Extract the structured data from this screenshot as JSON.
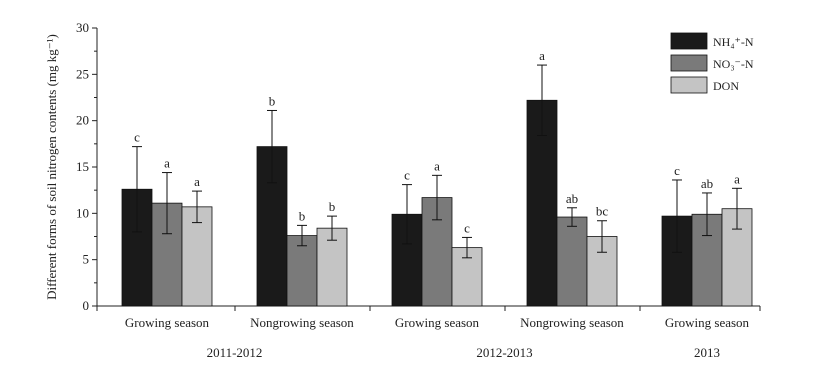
{
  "chart_data": {
    "type": "bar",
    "ylabel": "Different forms of soil nitrogen contents (mg kg⁻¹)",
    "ylim": [
      0,
      30
    ],
    "yticks": [
      0,
      5,
      10,
      15,
      20,
      25,
      30
    ],
    "categories": [
      "Growing season",
      "Nongrowing season",
      "Growing season",
      "Nongrowing season",
      "Growing season"
    ],
    "year_groups": [
      {
        "label": "2011-2012",
        "categories": [
          0,
          1
        ]
      },
      {
        "label": "2012-2013",
        "categories": [
          2,
          3
        ]
      },
      {
        "label": "2013",
        "categories": [
          4
        ]
      }
    ],
    "legend_position": "top-right",
    "series": [
      {
        "name": "NH₄⁺-N",
        "color": "#1a1a1a",
        "values": [
          12.6,
          17.2,
          9.9,
          22.2,
          9.7
        ],
        "errors": [
          4.6,
          3.9,
          3.2,
          3.8,
          3.9
        ],
        "letters": [
          "c",
          "b",
          "c",
          "a",
          "c"
        ]
      },
      {
        "name": "NO₃⁻-N",
        "color": "#7a7a7a",
        "values": [
          11.1,
          7.6,
          11.7,
          9.6,
          9.9
        ],
        "errors": [
          3.3,
          1.1,
          2.4,
          1.0,
          2.3
        ],
        "letters": [
          "a",
          "b",
          "a",
          "ab",
          "ab"
        ]
      },
      {
        "name": "DON",
        "color": "#c4c4c4",
        "values": [
          10.7,
          8.4,
          6.3,
          7.5,
          10.5
        ],
        "errors": [
          1.7,
          1.3,
          1.1,
          1.7,
          2.2
        ],
        "letters": [
          "a",
          "b",
          "c",
          "bc",
          "a"
        ]
      }
    ]
  }
}
